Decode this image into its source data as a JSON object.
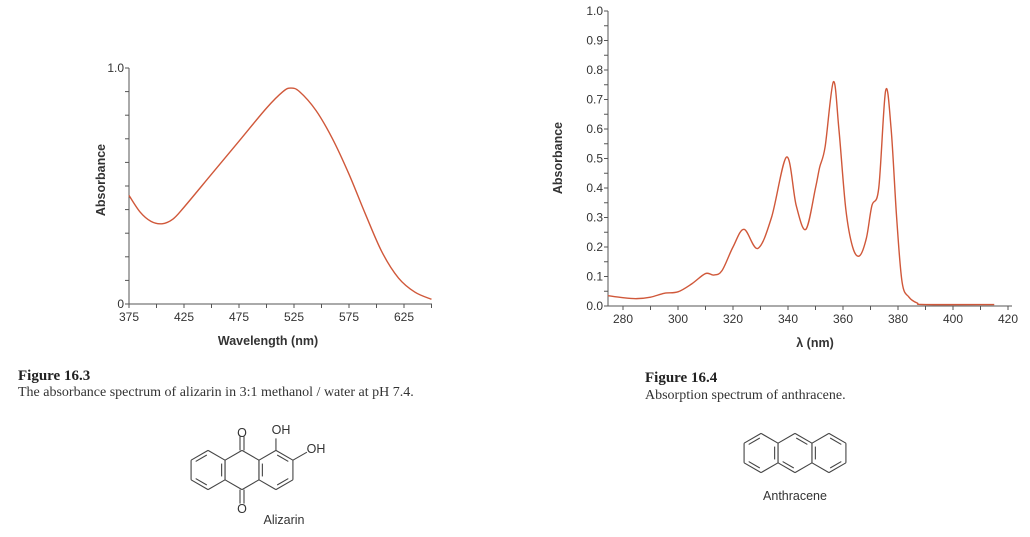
{
  "chart_data": [
    {
      "type": "line",
      "title": "",
      "xlabel": "Wavelength (nm)",
      "ylabel": "Absorbance",
      "xlim": [
        375,
        650
      ],
      "ylim": [
        0,
        1.0
      ],
      "xticks": [
        "375",
        "425",
        "475",
        "525",
        "575",
        "625"
      ],
      "yticks": [
        "0",
        "1.0"
      ],
      "grid": false,
      "color": "#d0583a",
      "x": [
        375,
        385,
        395,
        405,
        415,
        425,
        450,
        475,
        500,
        515,
        522,
        530,
        545,
        560,
        575,
        590,
        605,
        620,
        635,
        650
      ],
      "y": [
        0.46,
        0.39,
        0.35,
        0.34,
        0.36,
        0.41,
        0.55,
        0.69,
        0.83,
        0.9,
        0.915,
        0.9,
        0.82,
        0.7,
        0.55,
        0.38,
        0.22,
        0.11,
        0.05,
        0.02
      ]
    },
    {
      "type": "line",
      "title": "",
      "xlabel": "λ (nm)",
      "ylabel": "Absorbance",
      "xlim": [
        274.5,
        422
      ],
      "ylim": [
        0,
        1.0
      ],
      "xticks": [
        "280",
        "300",
        "320",
        "340",
        "360",
        "380",
        "400",
        "420"
      ],
      "yticks": [
        "0.0",
        "0.1",
        "0.2",
        "0.3",
        "0.4",
        "0.5",
        "0.6",
        "0.7",
        "0.8",
        "0.9",
        "1.0"
      ],
      "grid": false,
      "color": "#d0583a",
      "x": [
        274.5,
        280,
        285,
        290,
        295,
        300,
        305,
        310,
        313,
        316,
        320,
        324,
        329,
        334,
        339.5,
        343,
        346.5,
        350,
        351.5,
        353.5,
        356.5,
        358.5,
        361,
        363.5,
        366,
        368.5,
        370.5,
        373,
        375.5,
        377.5,
        379.5,
        381.5,
        384,
        387,
        390,
        415
      ],
      "y": [
        0.035,
        0.028,
        0.025,
        0.03,
        0.043,
        0.048,
        0.075,
        0.11,
        0.105,
        0.12,
        0.2,
        0.26,
        0.195,
        0.3,
        0.505,
        0.34,
        0.26,
        0.4,
        0.47,
        0.54,
        0.76,
        0.6,
        0.33,
        0.2,
        0.17,
        0.23,
        0.34,
        0.4,
        0.73,
        0.6,
        0.3,
        0.08,
        0.03,
        0.01,
        0.005,
        0.005
      ]
    }
  ],
  "figures": [
    {
      "label": "Figure 16.3",
      "caption": "The absorbance spectrum of alizarin in 3:1 methanol / water at pH 7.4.",
      "compound": "Alizarin",
      "atoms": [
        "O",
        "O",
        "OH",
        "OH"
      ]
    },
    {
      "label": "Figure 16.4",
      "caption": "Absorption spectrum of anthracene.",
      "compound": "Anthracene"
    }
  ]
}
